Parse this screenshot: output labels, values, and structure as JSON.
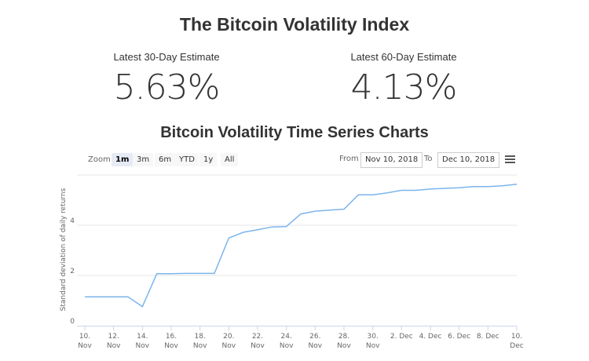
{
  "header": {
    "title": "The Bitcoin Volatility Index"
  },
  "estimates": [
    {
      "label": "Latest 30-Day Estimate",
      "value": "5.63%"
    },
    {
      "label": "Latest 60-Day Estimate",
      "value": "4.13%"
    }
  ],
  "subtitle": "Bitcoin Volatility Time Series Charts",
  "toolbar": {
    "zoom_label": "Zoom",
    "zoom_buttons": [
      "1m",
      "3m",
      "6m",
      "YTD",
      "1y",
      "All"
    ],
    "selected": "1m",
    "from_label": "From",
    "from_value": "Nov 10, 2018",
    "to_label": "To",
    "to_value": "Dec 10, 2018",
    "menu_icon": "hamburger-menu-icon"
  },
  "chart_data": {
    "type": "line",
    "ylabel": "Standard deviation of daily returns",
    "xlabel": "",
    "ylim": [
      0,
      6
    ],
    "yticks": [
      "0",
      "2",
      "4"
    ],
    "xticks": [
      [
        "10.",
        "Nov"
      ],
      [
        "12.",
        "Nov"
      ],
      [
        "14.",
        "Nov"
      ],
      [
        "16.",
        "Nov"
      ],
      [
        "18.",
        "Nov"
      ],
      [
        "20.",
        "Nov"
      ],
      [
        "22.",
        "Nov"
      ],
      [
        "24.",
        "Nov"
      ],
      [
        "26.",
        "Nov"
      ],
      [
        "28.",
        "Nov"
      ],
      [
        "30.",
        "Nov"
      ],
      [
        "2. Dec",
        ""
      ],
      [
        "4. Dec",
        ""
      ],
      [
        "6. Dec",
        ""
      ],
      [
        "8. Dec",
        ""
      ],
      [
        "10.",
        "Dec"
      ]
    ],
    "grid": true,
    "line_color": "#7cb5ec",
    "x": [
      "2018-11-10",
      "2018-11-11",
      "2018-11-12",
      "2018-11-13",
      "2018-11-14",
      "2018-11-15",
      "2018-11-16",
      "2018-11-17",
      "2018-11-18",
      "2018-11-19",
      "2018-11-20",
      "2018-11-21",
      "2018-11-22",
      "2018-11-23",
      "2018-11-24",
      "2018-11-25",
      "2018-11-26",
      "2018-11-27",
      "2018-11-28",
      "2018-11-29",
      "2018-11-30",
      "2018-12-01",
      "2018-12-02",
      "2018-12-03",
      "2018-12-04",
      "2018-12-05",
      "2018-12-06",
      "2018-12-07",
      "2018-12-08",
      "2018-12-09",
      "2018-12-10"
    ],
    "values": [
      1.15,
      1.15,
      1.15,
      1.15,
      0.76,
      2.07,
      2.07,
      2.08,
      2.08,
      2.08,
      3.49,
      3.72,
      3.82,
      3.93,
      3.95,
      4.45,
      4.56,
      4.6,
      4.64,
      5.21,
      5.21,
      5.29,
      5.39,
      5.39,
      5.44,
      5.47,
      5.49,
      5.54,
      5.54,
      5.57,
      5.63
    ]
  }
}
